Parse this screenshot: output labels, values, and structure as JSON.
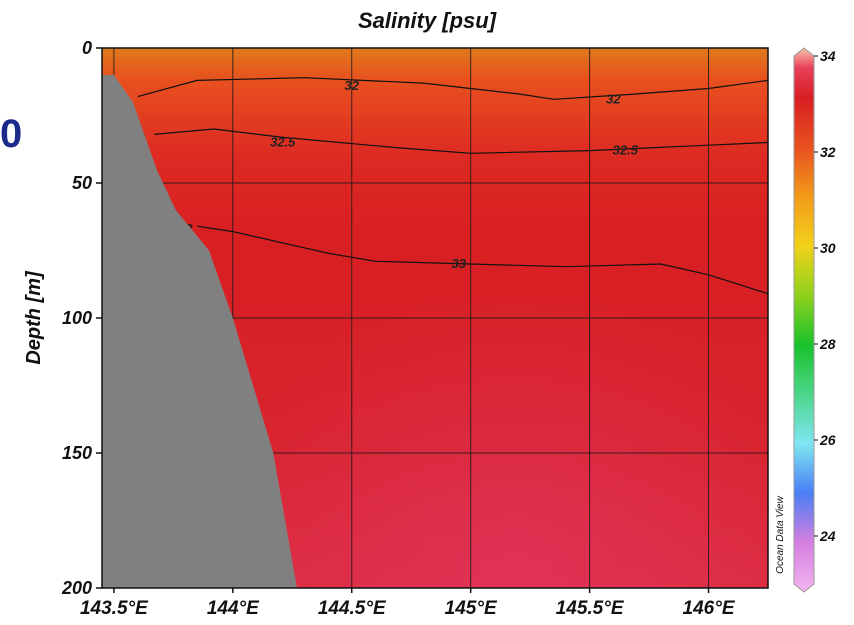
{
  "partial_text": "0",
  "watermark": "Ocean Data View",
  "chart_data": {
    "type": "heatmap",
    "title": "Salinity [psu]",
    "xlabel": "",
    "ylabel": "Depth [m]",
    "x_range": [
      143.45,
      146.25
    ],
    "y_range": [
      0,
      200
    ],
    "y_inverted": true,
    "grid": true,
    "x_ticks": [
      143.5,
      144.0,
      144.5,
      145.0,
      145.5,
      146.0
    ],
    "x_tick_labels": [
      "143.5°E",
      "144°E",
      "144.5°E",
      "145°E",
      "145.5°E",
      "146°E"
    ],
    "y_ticks": [
      0,
      50,
      100,
      150,
      200
    ],
    "y_tick_labels": [
      "0",
      "50",
      "100",
      "150",
      "200"
    ],
    "colorbar": {
      "range": [
        23,
        34
      ],
      "ticks": [
        34,
        32,
        30,
        28,
        26,
        24
      ],
      "tick_labels": [
        "34",
        "32",
        "30",
        "28",
        "26",
        "24"
      ],
      "stops": [
        {
          "value": 23.0,
          "color": "#f2b6f2"
        },
        {
          "value": 24.0,
          "color": "#d67fe0"
        },
        {
          "value": 25.0,
          "color": "#4a7ef5"
        },
        {
          "value": 26.0,
          "color": "#7fe6f2"
        },
        {
          "value": 27.0,
          "color": "#4cd68a"
        },
        {
          "value": 28.0,
          "color": "#19c12c"
        },
        {
          "value": 29.0,
          "color": "#8fd11c"
        },
        {
          "value": 30.0,
          "color": "#f2d21a"
        },
        {
          "value": 31.0,
          "color": "#f29a1a"
        },
        {
          "value": 32.0,
          "color": "#e8501f"
        },
        {
          "value": 33.0,
          "color": "#d81f22"
        },
        {
          "value": 33.6,
          "color": "#e8405a"
        },
        {
          "value": 34.0,
          "color": "#f7c5a8"
        }
      ]
    },
    "field_gradient": [
      {
        "depth": 0,
        "color": "#e07a1c"
      },
      {
        "depth": 12,
        "color": "#e8501f"
      },
      {
        "depth": 40,
        "color": "#dd2a22"
      },
      {
        "depth": 70,
        "color": "#d81f22"
      },
      {
        "depth": 150,
        "color": "#d8242d"
      },
      {
        "depth": 200,
        "color": "#dc2c3f"
      }
    ],
    "bathymetry": [
      {
        "x": 143.45,
        "depth": 10
      },
      {
        "x": 143.5,
        "depth": 10
      },
      {
        "x": 143.58,
        "depth": 20
      },
      {
        "x": 143.68,
        "depth": 45
      },
      {
        "x": 143.76,
        "depth": 60
      },
      {
        "x": 143.9,
        "depth": 75
      },
      {
        "x": 144.0,
        "depth": 100
      },
      {
        "x": 144.17,
        "depth": 150
      },
      {
        "x": 144.27,
        "depth": 200
      }
    ],
    "contours": [
      {
        "level": 32,
        "points": [
          [
            143.6,
            18
          ],
          [
            143.85,
            12
          ],
          [
            144.3,
            11
          ],
          [
            144.8,
            13
          ],
          [
            145.2,
            17
          ],
          [
            145.35,
            19
          ],
          [
            145.7,
            17
          ],
          [
            146.0,
            15
          ],
          [
            146.25,
            12
          ]
        ],
        "labels": [
          {
            "text": "32",
            "x": 144.5,
            "depth": 14
          },
          {
            "text": "32",
            "x": 145.6,
            "depth": 19
          }
        ]
      },
      {
        "level": 32.5,
        "points": [
          [
            143.67,
            32
          ],
          [
            143.92,
            30
          ],
          [
            144.2,
            33
          ],
          [
            144.7,
            37
          ],
          [
            145.0,
            39
          ],
          [
            145.5,
            38
          ],
          [
            146.0,
            36
          ],
          [
            146.25,
            35
          ]
        ],
        "labels": [
          {
            "text": "32.5",
            "x": 144.21,
            "depth": 35
          },
          {
            "text": "32.5",
            "x": 145.65,
            "depth": 38
          }
        ]
      },
      {
        "level": 33,
        "points": [
          [
            143.85,
            66
          ],
          [
            144.0,
            68
          ],
          [
            144.2,
            72
          ],
          [
            144.4,
            76
          ],
          [
            144.6,
            79
          ],
          [
            145.0,
            80
          ],
          [
            145.4,
            81
          ],
          [
            145.8,
            80
          ],
          [
            146.0,
            84
          ],
          [
            146.25,
            91
          ]
        ],
        "labels": [
          {
            "text": "33",
            "x": 143.8,
            "depth": 67
          },
          {
            "text": "33",
            "x": 144.95,
            "depth": 80
          }
        ]
      }
    ]
  }
}
